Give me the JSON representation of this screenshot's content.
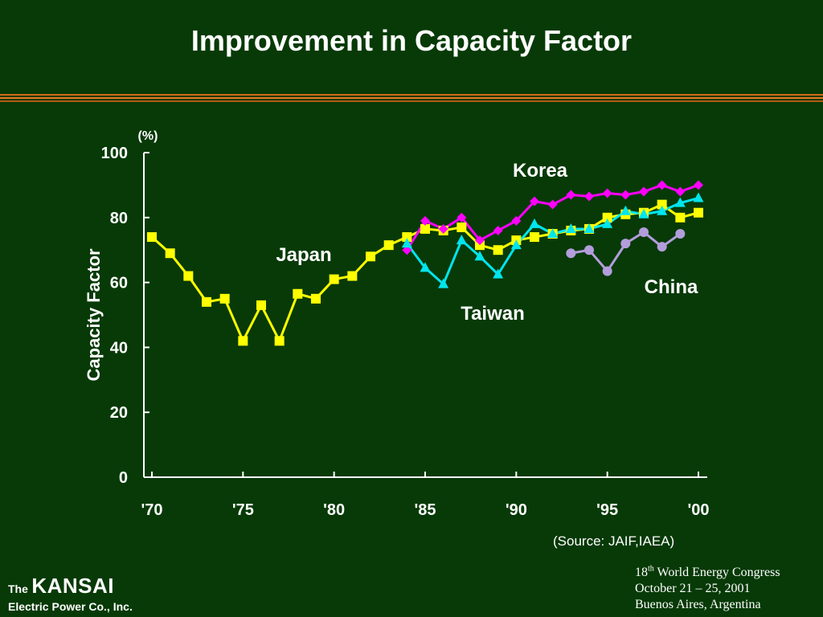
{
  "slide": {
    "title": "Improvement in Capacity Factor",
    "source": "(Source: JAIF,IAEA)",
    "company": {
      "prefix": "The",
      "name": "KANSAI",
      "suffix": "Electric Power Co., Inc."
    },
    "conference": {
      "line1_ordinal": "18",
      "line1_sup": "th",
      "line1_rest": " World Energy Congress",
      "line2": "October 21 – 25, 2001",
      "line3": "Buenos Aires, Argentina"
    },
    "colors": {
      "background": "#073a07",
      "rule": "#d2691e",
      "japan": "#ffff00",
      "korea": "#ff00ff",
      "taiwan": "#00e5ee",
      "china": "#b39ddb"
    }
  },
  "chart_data": {
    "type": "line",
    "title": "",
    "xlabel": "",
    "ylabel": "Capacity Factor",
    "yunit": "(%)",
    "ylim": [
      0,
      100
    ],
    "xlim": [
      1970,
      2000
    ],
    "yticks": [
      0,
      20,
      40,
      60,
      80,
      100
    ],
    "xticks": [
      {
        "value": 1970,
        "label": "'70"
      },
      {
        "value": 1975,
        "label": "'75"
      },
      {
        "value": 1980,
        "label": "'80"
      },
      {
        "value": 1985,
        "label": "'85"
      },
      {
        "value": 1990,
        "label": "'90"
      },
      {
        "value": 1995,
        "label": "'95"
      },
      {
        "value": 2000,
        "label": "'00"
      }
    ],
    "grid": false,
    "series": [
      {
        "name": "Japan",
        "marker": "square",
        "color": "#ffff00",
        "points": [
          [
            1970,
            74
          ],
          [
            1971,
            69
          ],
          [
            1972,
            62
          ],
          [
            1973,
            54
          ],
          [
            1974,
            55
          ],
          [
            1975,
            42
          ],
          [
            1976,
            53
          ],
          [
            1977,
            42
          ],
          [
            1978,
            56.5
          ],
          [
            1979,
            55
          ],
          [
            1980,
            61
          ],
          [
            1981,
            62
          ],
          [
            1982,
            68
          ],
          [
            1983,
            71.5
          ],
          [
            1984,
            74
          ],
          [
            1985,
            76.5
          ],
          [
            1986,
            76
          ],
          [
            1987,
            77
          ],
          [
            1988,
            71.5
          ],
          [
            1989,
            70
          ],
          [
            1990,
            73
          ],
          [
            1991,
            74
          ],
          [
            1992,
            75
          ],
          [
            1993,
            76
          ],
          [
            1994,
            76.5
          ],
          [
            1995,
            80
          ],
          [
            1996,
            81
          ],
          [
            1997,
            81.5
          ],
          [
            1998,
            84
          ],
          [
            1999,
            80
          ],
          [
            2000,
            81.5
          ]
        ]
      },
      {
        "name": "Korea",
        "marker": "diamond",
        "color": "#ff00ff",
        "points": [
          [
            1984,
            70
          ],
          [
            1985,
            79
          ],
          [
            1986,
            76.5
          ],
          [
            1987,
            80
          ],
          [
            1988,
            73
          ],
          [
            1989,
            76
          ],
          [
            1990,
            79
          ],
          [
            1991,
            85
          ],
          [
            1992,
            84
          ],
          [
            1993,
            87
          ],
          [
            1994,
            86.5
          ],
          [
            1995,
            87.5
          ],
          [
            1996,
            87
          ],
          [
            1997,
            88
          ],
          [
            1998,
            90
          ],
          [
            1999,
            88
          ],
          [
            2000,
            90
          ]
        ]
      },
      {
        "name": "Taiwan",
        "marker": "triangle",
        "color": "#00e5ee",
        "points": [
          [
            1984,
            72
          ],
          [
            1985,
            64.5
          ],
          [
            1986,
            59.5
          ],
          [
            1987,
            73
          ],
          [
            1988,
            68
          ],
          [
            1989,
            62.5
          ],
          [
            1990,
            71.5
          ],
          [
            1991,
            78
          ],
          [
            1992,
            75
          ],
          [
            1993,
            76.5
          ],
          [
            1994,
            76.5
          ],
          [
            1995,
            78
          ],
          [
            1996,
            82
          ],
          [
            1997,
            81
          ],
          [
            1998,
            82
          ],
          [
            1999,
            84.5
          ],
          [
            2000,
            86
          ]
        ]
      },
      {
        "name": "China",
        "marker": "circle",
        "color": "#b39ddb",
        "points": [
          [
            1993,
            69
          ],
          [
            1994,
            70
          ],
          [
            1995,
            63.5
          ],
          [
            1996,
            72
          ],
          [
            1997,
            75.5
          ],
          [
            1998,
            71
          ],
          [
            1999,
            75
          ]
        ]
      }
    ],
    "annotations": [
      {
        "text": "Japan",
        "series": "Japan"
      },
      {
        "text": "Korea",
        "series": "Korea"
      },
      {
        "text": "Taiwan",
        "series": "Taiwan"
      },
      {
        "text": "China",
        "series": "China"
      }
    ]
  }
}
